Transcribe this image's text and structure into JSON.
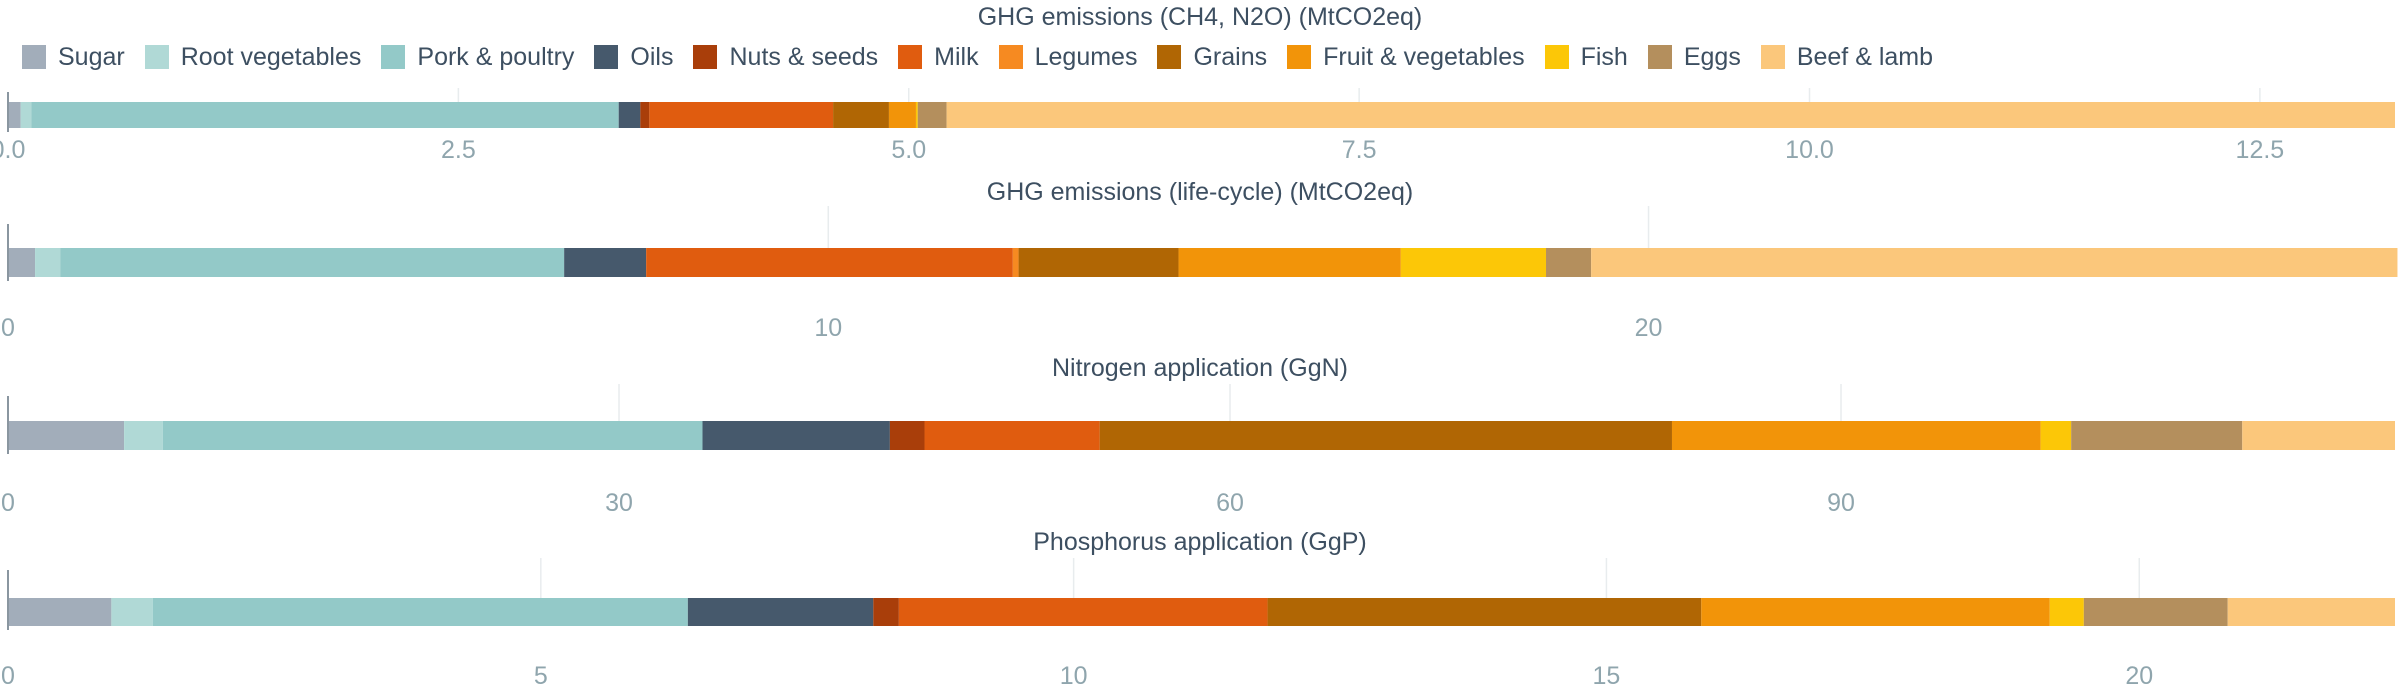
{
  "categories": [
    "Sugar",
    "Root vegetables",
    "Pork & poultry",
    "Oils",
    "Nuts & seeds",
    "Milk",
    "Legumes",
    "Grains",
    "Fruit & vegetables",
    "Fish",
    "Eggs",
    "Beef & lamb"
  ],
  "colors": {
    "Sugar": "#a2adba",
    "Root vegetables": "#b0d9d6",
    "Pork & poultry": "#93c9c8",
    "Oils": "#46596c",
    "Nuts & seeds": "#a93e0a",
    "Milk": "#e05c0f",
    "Legumes": "#f68a21",
    "Grains": "#b06604",
    "Fruit & vegetables": "#f29409",
    "Fish": "#fcc707",
    "Eggs": "#b48f5d",
    "Beef & lamb": "#fbc77b"
  },
  "text_color": "#3d4f61",
  "tick_color": "#8fa5ad",
  "chart_data": [
    {
      "type": "bar",
      "orientation": "horizontal",
      "stacked": true,
      "title": "GHG emissions (CH4, N2O) (MtCO2eq)",
      "xlim": [
        0,
        13.25
      ],
      "ticks": [
        0,
        2.5,
        5,
        7.5,
        10,
        12.5
      ],
      "tick_labels": [
        "0.0",
        "2.5",
        "5.0",
        "7.5",
        "10.0",
        "12.5"
      ],
      "values": [
        0.07,
        0.06,
        3.26,
        0.12,
        0.05,
        1.02,
        0.0,
        0.31,
        0.15,
        0.01,
        0.16,
        8.04
      ]
    },
    {
      "type": "bar",
      "orientation": "horizontal",
      "stacked": true,
      "title": "GHG emissions (life-cycle) (MtCO2eq)",
      "xlim": [
        0,
        29.1
      ],
      "ticks": [
        0,
        10,
        20
      ],
      "tick_labels": [
        "0",
        "10",
        "20"
      ],
      "values": [
        0.33,
        0.31,
        6.14,
        1.0,
        0.0,
        4.47,
        0.07,
        1.95,
        2.71,
        1.77,
        0.55,
        9.83
      ]
    },
    {
      "type": "bar",
      "orientation": "horizontal",
      "stacked": true,
      "title": "Nitrogen application (GgN)",
      "xlim": [
        0,
        117.2
      ],
      "ticks": [
        0,
        30,
        60,
        90
      ],
      "tick_labels": [
        "0",
        "30",
        "60",
        "90"
      ],
      "values": [
        5.7,
        1.9,
        26.5,
        9.2,
        1.7,
        8.6,
        0.0,
        28.1,
        18.1,
        1.5,
        8.4,
        7.5
      ]
    },
    {
      "type": "bar",
      "orientation": "horizontal",
      "stacked": true,
      "title": "Phosphorus application (GgP)",
      "xlim": [
        0,
        22.4
      ],
      "ticks": [
        0,
        5,
        10,
        15,
        20
      ],
      "tick_labels": [
        "0",
        "5",
        "10",
        "15",
        "20"
      ],
      "values": [
        0.97,
        0.39,
        5.02,
        1.74,
        0.24,
        3.46,
        0.0,
        4.07,
        3.27,
        0.32,
        1.35,
        1.57
      ]
    }
  ]
}
